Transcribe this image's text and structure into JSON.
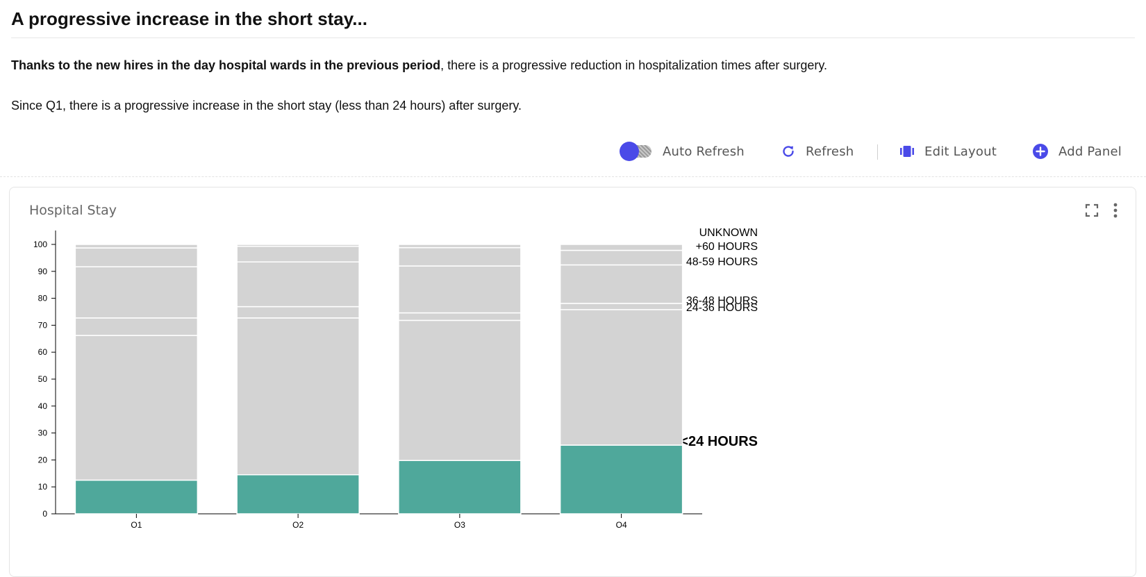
{
  "header": {
    "title": "A progressive increase in the short stay...",
    "para1_bold": "Thanks to the new hires in the day hospital wards in the previous period",
    "para1_rest": ", there is a progressive reduction in hospitalization times after surgery.",
    "para2": "Since Q1, there is a progressive increase in the short stay (less than 24 hours) after surgery."
  },
  "toolbar": {
    "auto_refresh_label": "Auto Refresh",
    "auto_refresh_on": true,
    "refresh_label": "Refresh",
    "edit_layout_label": "Edit Layout",
    "add_panel_label": "Add Panel",
    "accent_color": "#4a4ae8"
  },
  "panel": {
    "title": "Hospital Stay",
    "expand_icon": "expand-icon",
    "menu_icon": "more-vertical-icon"
  },
  "chart_data": {
    "type": "bar",
    "stacked": true,
    "title": "Hospital Stay",
    "xlabel": "",
    "ylabel": "",
    "categories": [
      "Q1",
      "Q2",
      "Q3",
      "Q4"
    ],
    "ylim": [
      0,
      100
    ],
    "yticks": [
      0,
      10,
      20,
      30,
      40,
      50,
      60,
      70,
      80,
      90,
      100
    ],
    "grid": false,
    "series": [
      {
        "name": "<24 HOURS",
        "values": [
          12.5,
          14.5,
          19.8,
          25.5
        ],
        "color": "#4fa89b",
        "highlight": true
      },
      {
        "name": "24-36 HOURS",
        "values": [
          53.7,
          58.2,
          52.0,
          50.3
        ],
        "color": "#d3d3d3"
      },
      {
        "name": "36-48 HOURS",
        "values": [
          6.5,
          4.2,
          2.8,
          2.3
        ],
        "color": "#d3d3d3"
      },
      {
        "name": "48-59 HOURS",
        "values": [
          19.0,
          16.6,
          17.4,
          14.3
        ],
        "color": "#d3d3d3"
      },
      {
        "name": "+60 HOURS",
        "values": [
          7.0,
          5.8,
          6.8,
          5.4
        ],
        "color": "#d3d3d3"
      },
      {
        "name": "UNKNOWN",
        "values": [
          1.3,
          0.7,
          1.2,
          2.2
        ],
        "color": "#d3d3d3"
      }
    ]
  }
}
